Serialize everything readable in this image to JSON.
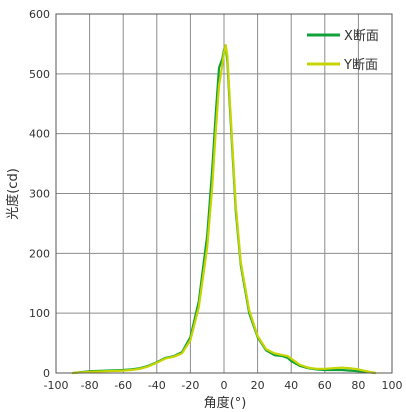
{
  "chart_data": {
    "type": "line",
    "xlabel": "角度(°)",
    "ylabel": "光度(cd)",
    "xlim": [
      -100,
      100
    ],
    "ylim": [
      0,
      600
    ],
    "x_ticks": [
      -100,
      -80,
      -60,
      -40,
      -20,
      0,
      20,
      40,
      60,
      80,
      100
    ],
    "y_ticks": [
      0,
      100,
      200,
      300,
      400,
      500,
      600
    ],
    "x_tick_labels": [
      "-100",
      "-80",
      "-60",
      "-40",
      "-20",
      "0",
      "20",
      "40",
      "60",
      "80",
      "100"
    ],
    "y_tick_labels": [
      "0",
      "100",
      "200",
      "300",
      "400",
      "500",
      "600"
    ],
    "grid": true,
    "legend_position": "top-right",
    "series": [
      {
        "name": "X断面",
        "color": "#11a13a",
        "x": [
          -90,
          -80,
          -70,
          -60,
          -55,
          -50,
          -45,
          -40,
          -35,
          -30,
          -25,
          -20,
          -15,
          -10,
          -7,
          -5,
          -3,
          -1,
          0,
          1,
          2,
          3,
          5,
          7,
          10,
          15,
          20,
          25,
          30,
          35,
          38,
          40,
          45,
          50,
          55,
          60,
          65,
          70,
          75,
          80,
          85,
          90
        ],
        "y": [
          0,
          3,
          4,
          5,
          6,
          8,
          12,
          18,
          25,
          28,
          35,
          60,
          120,
          230,
          340,
          430,
          510,
          525,
          540,
          545,
          520,
          470,
          370,
          270,
          180,
          100,
          60,
          38,
          30,
          28,
          25,
          20,
          12,
          8,
          6,
          5,
          5,
          5,
          4,
          3,
          2,
          0
        ]
      },
      {
        "name": "Y断面",
        "color": "#c6d400",
        "x": [
          -90,
          -80,
          -70,
          -60,
          -55,
          -50,
          -45,
          -40,
          -35,
          -30,
          -25,
          -20,
          -15,
          -10,
          -7,
          -5,
          -3,
          -1,
          0,
          1,
          2,
          3,
          5,
          7,
          10,
          15,
          20,
          25,
          30,
          35,
          38,
          40,
          45,
          50,
          55,
          60,
          65,
          70,
          75,
          80,
          85,
          90
        ],
        "y": [
          0,
          2,
          3,
          4,
          5,
          7,
          11,
          17,
          24,
          27,
          33,
          55,
          110,
          210,
          310,
          400,
          480,
          515,
          535,
          548,
          530,
          480,
          380,
          280,
          185,
          105,
          62,
          40,
          33,
          30,
          28,
          24,
          14,
          9,
          7,
          7,
          8,
          9,
          8,
          6,
          3,
          0
        ]
      }
    ]
  }
}
